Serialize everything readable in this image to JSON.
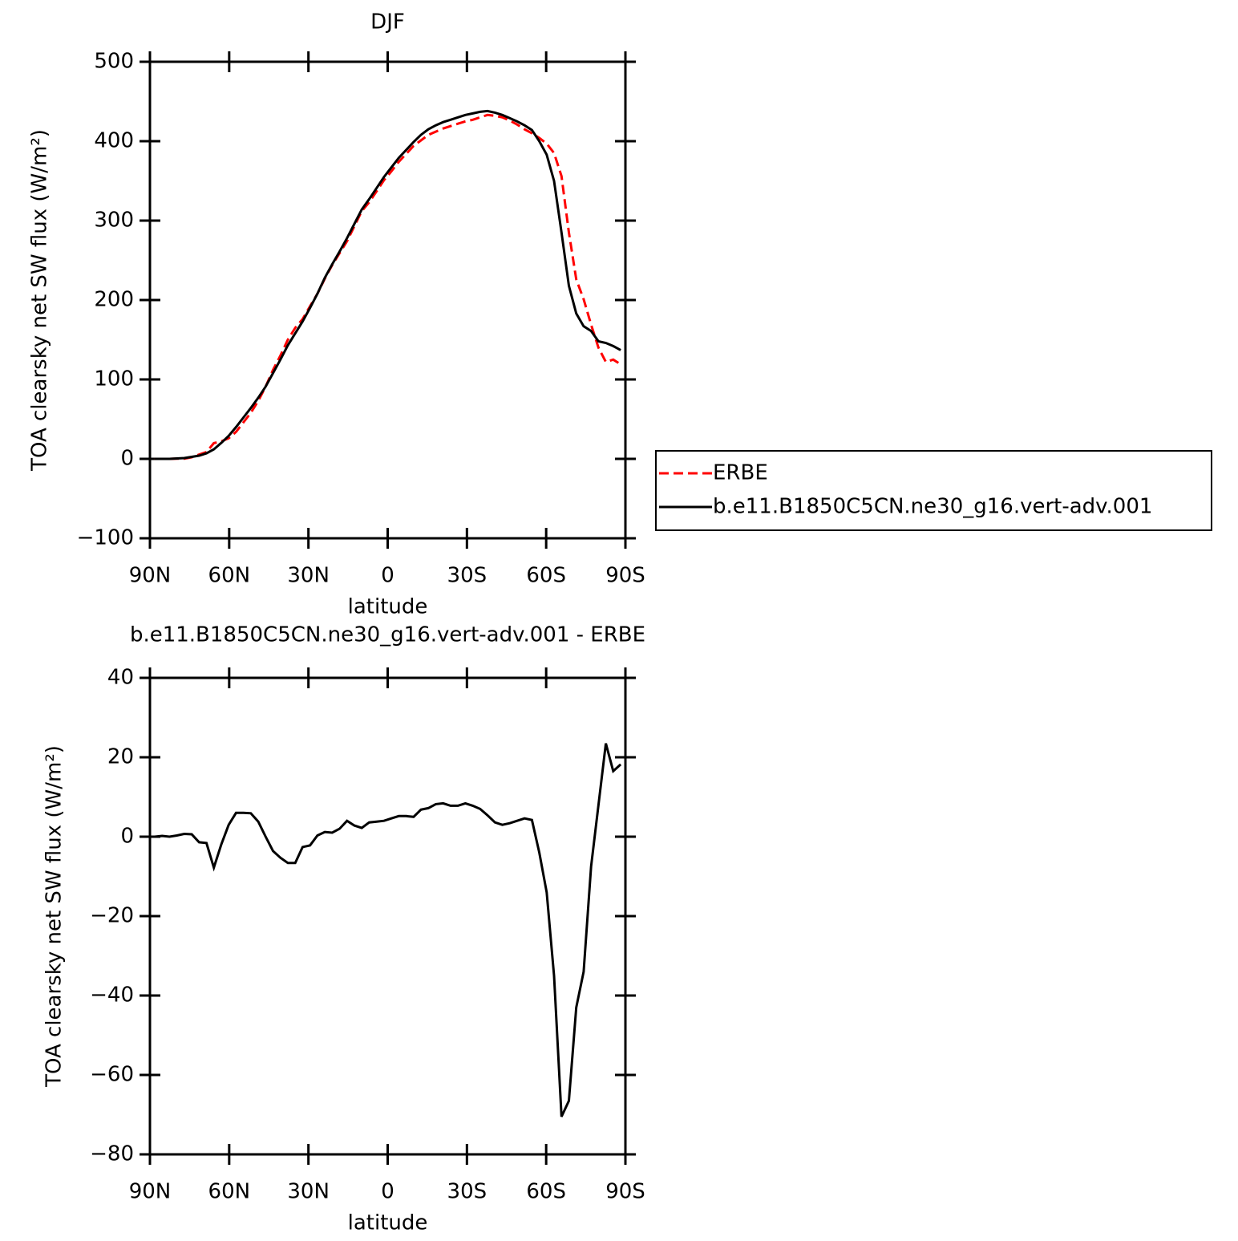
{
  "chart_data": [
    {
      "type": "line",
      "title": "DJF",
      "xlabel": "latitude",
      "ylabel": "TOA clearsky net SW flux (W/m²)",
      "x": [
        88.2,
        85.4,
        82.6,
        79.8,
        77.0,
        74.2,
        71.4,
        68.6,
        65.8,
        63.0,
        60.2,
        57.4,
        54.6,
        51.8,
        49.0,
        46.2,
        43.4,
        40.6,
        37.8,
        35.0,
        32.2,
        29.4,
        26.6,
        23.8,
        21.0,
        18.2,
        15.4,
        12.6,
        9.8,
        7.0,
        4.2,
        1.4,
        -1.4,
        -4.2,
        -7.0,
        -9.8,
        -12.6,
        -15.4,
        -18.2,
        -21.0,
        -23.8,
        -26.6,
        -29.4,
        -32.2,
        -35.0,
        -37.8,
        -40.6,
        -43.4,
        -46.2,
        -49.0,
        -51.8,
        -54.6,
        -57.4,
        -60.2,
        -63.0,
        -65.8,
        -68.6,
        -71.4,
        -74.2,
        -77.0,
        -79.8,
        -82.6,
        -85.4,
        -88.2
      ],
      "xlim": [
        90,
        -90
      ],
      "xticks": [
        {
          "value": 90,
          "label": "90N"
        },
        {
          "value": 60,
          "label": "60N"
        },
        {
          "value": 30,
          "label": "30N"
        },
        0,
        {
          "value": -30,
          "label": "30S"
        },
        {
          "value": -60,
          "label": "60S"
        },
        {
          "value": -90,
          "label": "90S"
        }
      ],
      "ylim": [
        -100,
        500
      ],
      "yticks": [
        {
          "value": -100,
          "label": "−100"
        },
        0,
        100,
        200,
        300,
        400,
        500
      ],
      "legend": "right",
      "series": [
        {
          "name": "ERBE",
          "color": "#ff0000",
          "style": "dashed",
          "values": [
            0,
            0,
            0,
            0.2,
            0.3,
            1.9,
            5.4,
            8.6,
            19.8,
            22,
            26,
            34,
            46,
            58,
            73,
            91,
            112,
            130,
            150,
            165,
            176,
            192,
            208,
            227,
            244,
            259,
            274,
            293,
            312,
            323,
            337,
            351,
            362,
            374,
            384,
            394,
            401,
            408,
            412,
            416,
            419,
            422,
            425,
            427,
            430,
            433,
            432,
            430,
            426,
            421,
            415,
            410,
            404,
            397,
            385,
            356,
            285,
            226,
            201,
            169,
            140,
            122,
            125,
            119
          ]
        },
        {
          "name": "b.e11.B1850C5CN.ne30_g16.vert-adv.001",
          "color": "#000000",
          "style": "solid",
          "values": [
            0,
            0,
            0,
            0.5,
            1,
            2.5,
            4,
            7,
            12,
            20,
            29,
            40,
            52,
            64,
            77,
            91,
            108,
            125,
            143,
            158,
            173,
            190,
            208,
            228,
            245,
            261,
            278,
            296,
            314,
            327,
            341,
            355,
            367,
            379,
            389,
            399,
            408,
            415,
            420,
            424,
            427,
            430,
            433,
            435,
            437,
            438,
            436,
            433,
            429,
            425,
            420,
            414,
            400,
            383,
            350,
            285,
            218,
            183,
            167,
            161,
            148,
            146,
            142,
            137
          ]
        }
      ]
    },
    {
      "type": "line",
      "title": "b.e11.B1850C5CN.ne30_g16.vert-adv.001 - ERBE",
      "xlabel": "latitude",
      "ylabel": "TOA clearsky net SW flux (W/m²)",
      "x": [
        88.2,
        85.4,
        82.6,
        79.8,
        77.0,
        74.2,
        71.4,
        68.6,
        65.8,
        63.0,
        60.2,
        57.4,
        54.6,
        51.8,
        49.0,
        46.2,
        43.4,
        40.6,
        37.8,
        35.0,
        32.2,
        29.4,
        26.6,
        23.8,
        21.0,
        18.2,
        15.4,
        12.6,
        9.8,
        7.0,
        4.2,
        1.4,
        -1.4,
        -4.2,
        -7.0,
        -9.8,
        -12.6,
        -15.4,
        -18.2,
        -21.0,
        -23.8,
        -26.6,
        -29.4,
        -32.2,
        -35.0,
        -37.8,
        -40.6,
        -43.4,
        -46.2,
        -49.0,
        -51.8,
        -54.6,
        -57.4,
        -60.2,
        -63.0,
        -65.8,
        -68.6,
        -71.4,
        -74.2,
        -77.0,
        -79.8,
        -82.6,
        -85.4,
        -88.2
      ],
      "xlim": [
        90,
        -90
      ],
      "xticks": [
        {
          "value": 90,
          "label": "90N"
        },
        {
          "value": 60,
          "label": "60N"
        },
        {
          "value": 30,
          "label": "30N"
        },
        0,
        {
          "value": -30,
          "label": "30S"
        },
        {
          "value": -60,
          "label": "60S"
        },
        {
          "value": -90,
          "label": "90S"
        }
      ],
      "ylim": [
        -80,
        40
      ],
      "yticks": [
        {
          "value": -80,
          "label": "−80"
        },
        {
          "value": -60,
          "label": "−60"
        },
        {
          "value": -40,
          "label": "−40"
        },
        {
          "value": -20,
          "label": "−20"
        },
        0,
        20,
        40
      ],
      "series": [
        {
          "color": "#000000",
          "style": "solid",
          "values": [
            0,
            0.2,
            0,
            0.3,
            0.7,
            0.6,
            -1.4,
            -1.6,
            -7.8,
            -2,
            3,
            6,
            6,
            5.9,
            3.8,
            0,
            -3.6,
            -5.3,
            -6.6,
            -6.6,
            -2.6,
            -2.2,
            0.3,
            1.2,
            1,
            2,
            4,
            2.8,
            2.2,
            3.6,
            3.8,
            4,
            4.6,
            5.2,
            5.2,
            5,
            6.8,
            7.2,
            8.2,
            8.4,
            7.8,
            7.8,
            8.4,
            7.8,
            7,
            5.4,
            3.6,
            3,
            3.4,
            4,
            4.6,
            4.2,
            -4,
            -14,
            -35,
            -70.5,
            -66.5,
            -43,
            -34,
            -7.5,
            8,
            23.5,
            16.5,
            18.2
          ]
        }
      ]
    }
  ]
}
